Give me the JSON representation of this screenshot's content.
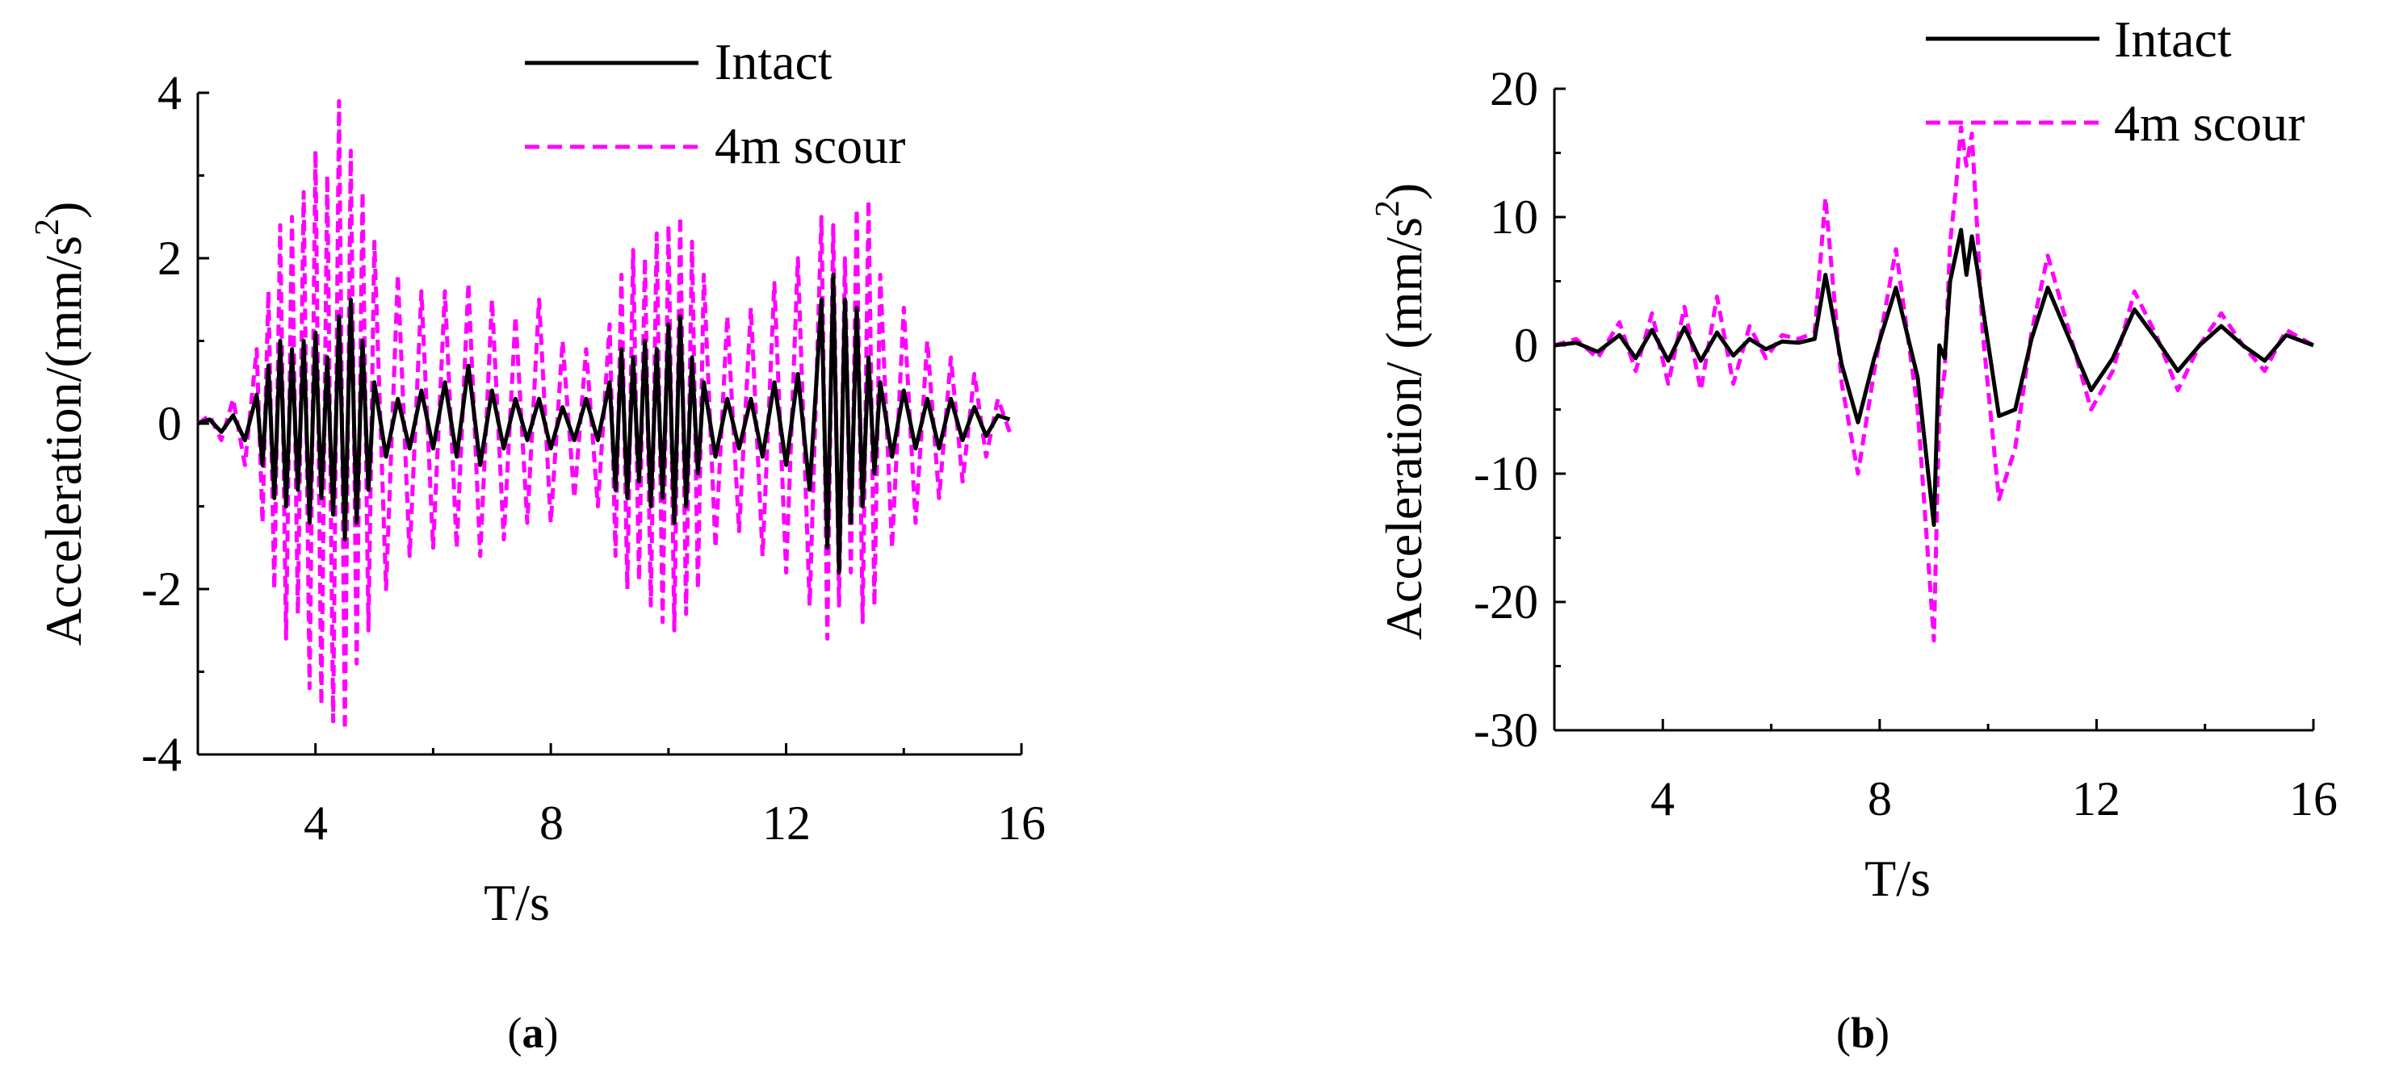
{
  "chart_data": [
    {
      "id": "a",
      "type": "line",
      "panel_label": "a",
      "xlabel": "T/s",
      "ylabel": "Acceleration/(mm/s",
      "ylabel_sup": "2",
      "ylabel_tail": ")",
      "xlim": [
        2,
        16
      ],
      "ylim": [
        -4,
        4
      ],
      "xticks": [
        4,
        8,
        12,
        16
      ],
      "yticks": [
        -4,
        -2,
        0,
        2,
        4
      ],
      "legend": {
        "position": "top-right",
        "entries": [
          "Intact",
          "4m scour"
        ]
      },
      "series": [
        {
          "name": "Intact",
          "color": "#000000",
          "style": "solid",
          "x": [
            2.0,
            2.2,
            2.4,
            2.6,
            2.8,
            3.0,
            3.1,
            3.2,
            3.3,
            3.4,
            3.5,
            3.6,
            3.7,
            3.8,
            3.9,
            4.0,
            4.1,
            4.2,
            4.3,
            4.4,
            4.5,
            4.6,
            4.7,
            4.8,
            4.9,
            5.0,
            5.2,
            5.4,
            5.6,
            5.8,
            6.0,
            6.2,
            6.4,
            6.6,
            6.8,
            7.0,
            7.2,
            7.4,
            7.6,
            7.8,
            8.0,
            8.2,
            8.4,
            8.6,
            8.8,
            9.0,
            9.1,
            9.2,
            9.3,
            9.4,
            9.5,
            9.6,
            9.7,
            9.8,
            9.9,
            10.0,
            10.1,
            10.2,
            10.3,
            10.4,
            10.5,
            10.6,
            10.8,
            11.0,
            11.2,
            11.4,
            11.6,
            11.8,
            12.0,
            12.2,
            12.4,
            12.6,
            12.7,
            12.8,
            12.9,
            13.0,
            13.1,
            13.2,
            13.3,
            13.4,
            13.5,
            13.6,
            13.8,
            14.0,
            14.2,
            14.4,
            14.6,
            14.8,
            15.0,
            15.2,
            15.4,
            15.6,
            15.8
          ],
          "y": [
            0.0,
            0.05,
            -0.1,
            0.1,
            -0.2,
            0.35,
            -0.5,
            0.7,
            -0.9,
            1.0,
            -1.0,
            0.9,
            -0.8,
            1.0,
            -1.2,
            1.1,
            -0.9,
            0.8,
            -1.1,
            1.3,
            -1.4,
            1.5,
            -1.2,
            1.0,
            -0.8,
            0.5,
            -0.4,
            0.3,
            -0.3,
            0.4,
            -0.3,
            0.5,
            -0.4,
            0.7,
            -0.5,
            0.4,
            -0.3,
            0.3,
            -0.2,
            0.3,
            -0.3,
            0.2,
            -0.2,
            0.3,
            -0.2,
            0.5,
            -0.8,
            0.9,
            -0.9,
            0.8,
            -0.7,
            1.0,
            -1.0,
            0.9,
            -0.9,
            1.2,
            -1.2,
            1.3,
            -1.0,
            0.8,
            -0.6,
            0.5,
            -0.4,
            0.3,
            -0.3,
            0.3,
            -0.4,
            0.5,
            -0.5,
            0.6,
            -0.8,
            1.5,
            -1.5,
            1.8,
            -1.8,
            1.5,
            -1.2,
            1.4,
            -1.0,
            0.8,
            -0.6,
            0.5,
            -0.4,
            0.4,
            -0.3,
            0.3,
            -0.3,
            0.3,
            -0.2,
            0.2,
            -0.15,
            0.1,
            0.05
          ]
        },
        {
          "name": "4m scour",
          "color": "#ff00ff",
          "style": "dashed",
          "x": [
            2.0,
            2.2,
            2.4,
            2.6,
            2.8,
            3.0,
            3.1,
            3.2,
            3.3,
            3.4,
            3.5,
            3.6,
            3.7,
            3.8,
            3.9,
            4.0,
            4.1,
            4.2,
            4.3,
            4.4,
            4.5,
            4.6,
            4.7,
            4.8,
            4.9,
            5.0,
            5.2,
            5.4,
            5.6,
            5.8,
            6.0,
            6.2,
            6.4,
            6.6,
            6.8,
            7.0,
            7.2,
            7.4,
            7.6,
            7.8,
            8.0,
            8.2,
            8.4,
            8.6,
            8.8,
            9.0,
            9.1,
            9.2,
            9.3,
            9.4,
            9.5,
            9.6,
            9.7,
            9.8,
            9.9,
            10.0,
            10.1,
            10.2,
            10.3,
            10.4,
            10.5,
            10.6,
            10.8,
            11.0,
            11.2,
            11.4,
            11.6,
            11.8,
            12.0,
            12.2,
            12.4,
            12.6,
            12.7,
            12.8,
            12.9,
            13.0,
            13.1,
            13.2,
            13.3,
            13.4,
            13.5,
            13.6,
            13.8,
            14.0,
            14.2,
            14.4,
            14.6,
            14.8,
            15.0,
            15.2,
            15.4,
            15.6,
            15.8
          ],
          "y": [
            0.0,
            0.1,
            -0.2,
            0.3,
            -0.5,
            0.9,
            -1.2,
            1.6,
            -2.0,
            2.4,
            -2.6,
            2.5,
            -2.3,
            2.8,
            -3.2,
            3.3,
            -3.4,
            3.0,
            -3.6,
            3.9,
            -3.7,
            3.3,
            -2.9,
            2.8,
            -2.5,
            2.2,
            -2.0,
            1.8,
            -1.6,
            1.6,
            -1.5,
            1.6,
            -1.5,
            1.7,
            -1.6,
            1.5,
            -1.4,
            1.3,
            -1.2,
            1.5,
            -1.2,
            1.0,
            -0.9,
            0.9,
            -1.0,
            1.2,
            -1.6,
            1.8,
            -2.0,
            2.1,
            -1.9,
            2.0,
            -2.2,
            2.3,
            -2.4,
            2.4,
            -2.5,
            2.5,
            -2.3,
            2.2,
            -2.0,
            1.8,
            -1.5,
            1.3,
            -1.3,
            1.4,
            -1.6,
            1.7,
            -1.8,
            2.0,
            -2.2,
            2.5,
            -2.6,
            2.4,
            -2.2,
            2.0,
            -1.8,
            2.6,
            -2.4,
            2.7,
            -2.2,
            1.8,
            -1.5,
            1.4,
            -1.2,
            1.0,
            -0.9,
            0.8,
            -0.7,
            0.6,
            -0.4,
            0.3,
            -0.1
          ]
        }
      ]
    },
    {
      "id": "b",
      "type": "line",
      "panel_label": "b",
      "xlabel": "T/s",
      "ylabel": "Acceleration/ (mm/s",
      "ylabel_sup": "2",
      "ylabel_tail": ")",
      "xlim": [
        2,
        16
      ],
      "ylim": [
        -30,
        20
      ],
      "xticks": [
        4,
        8,
        12,
        16
      ],
      "yticks": [
        -30,
        -20,
        -10,
        0,
        10,
        20
      ],
      "legend": {
        "position": "top-right",
        "entries": [
          "Intact",
          "4m scour"
        ]
      },
      "series": [
        {
          "name": "Intact",
          "color": "#000000",
          "style": "solid",
          "x": [
            2.0,
            2.4,
            2.8,
            3.2,
            3.5,
            3.8,
            4.1,
            4.4,
            4.7,
            5.0,
            5.3,
            5.6,
            5.9,
            6.2,
            6.5,
            6.8,
            7.0,
            7.3,
            7.6,
            7.9,
            8.3,
            8.7,
            9.0,
            9.1,
            9.2,
            9.3,
            9.4,
            9.5,
            9.6,
            9.7,
            9.8,
            9.9,
            10.2,
            10.5,
            10.8,
            11.1,
            11.5,
            11.9,
            12.3,
            12.7,
            13.1,
            13.5,
            13.9,
            14.3,
            14.7,
            15.1,
            15.5,
            16.0
          ],
          "y": [
            0,
            0.2,
            -0.5,
            0.8,
            -1.0,
            1.2,
            -1.2,
            1.4,
            -1.2,
            1.0,
            -0.8,
            0.5,
            -0.3,
            0.3,
            0.2,
            0.5,
            5.5,
            -1.5,
            -6.0,
            -1.0,
            4.5,
            -2.5,
            -14.0,
            0,
            -1.0,
            5.0,
            7.0,
            9.0,
            5.5,
            8.5,
            6.0,
            3.0,
            -5.5,
            -5.0,
            0.5,
            4.5,
            0.5,
            -3.5,
            -1.0,
            2.8,
            0.5,
            -2.0,
            0,
            1.5,
            0,
            -1.2,
            0.8,
            0
          ]
        },
        {
          "name": "4m scour",
          "color": "#ff00ff",
          "style": "dashed",
          "x": [
            2.0,
            2.4,
            2.8,
            3.2,
            3.5,
            3.8,
            4.1,
            4.4,
            4.7,
            5.0,
            5.3,
            5.6,
            5.9,
            6.2,
            6.5,
            6.8,
            7.0,
            7.3,
            7.6,
            7.9,
            8.3,
            8.7,
            9.0,
            9.1,
            9.2,
            9.3,
            9.4,
            9.5,
            9.6,
            9.7,
            9.8,
            9.9,
            10.2,
            10.5,
            10.8,
            11.1,
            11.5,
            11.9,
            12.3,
            12.7,
            13.1,
            13.5,
            13.9,
            14.3,
            14.7,
            15.1,
            15.5,
            16.0
          ],
          "y": [
            0,
            0.5,
            -1.0,
            1.8,
            -2.0,
            2.5,
            -3.0,
            3.0,
            -3.5,
            3.8,
            -3.0,
            1.5,
            -1.0,
            0.8,
            0.5,
            1.0,
            11.5,
            -3.0,
            -10.0,
            -2.0,
            7.5,
            -5.0,
            -23.0,
            -5.0,
            -2.0,
            8.0,
            12.0,
            17.0,
            14.0,
            16.5,
            9.0,
            1.0,
            -12.0,
            -8.0,
            1.0,
            7.0,
            1.0,
            -5.0,
            -2.0,
            4.2,
            0.8,
            -3.5,
            0,
            2.5,
            0,
            -2.0,
            1.2,
            0
          ]
        }
      ]
    }
  ]
}
